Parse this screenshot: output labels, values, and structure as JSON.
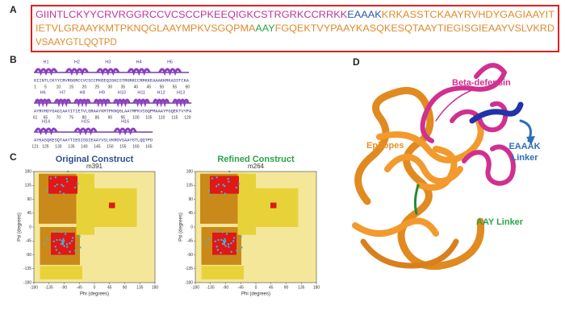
{
  "panels": {
    "a": {
      "label": "A",
      "lines": [
        [
          {
            "text": "GIINTLCKYYCRVRGGRCCVCSCCPKEEQIGKCSTRGRKCCRRKK",
            "color": "#c0339a"
          },
          {
            "text": "EAAAK",
            "color": "#2e56a8"
          },
          {
            "text": "KRKASSTCKAAYRVHDYGAGIAAYIT",
            "color": "#e08a2a"
          }
        ],
        [
          {
            "text": "IETVLGRAAYKMTPKNQGLAAYMPKVSGQPMA",
            "color": "#e08a2a"
          },
          {
            "text": "AAY",
            "color": "#2ca24a"
          },
          {
            "text": "FGQEKTVYPAAYKASQKESQTAAYTIEGISGIEAAYVSLVKRD",
            "color": "#e08a2a"
          }
        ],
        [
          {
            "text": "VSAAYGTLQQTPD",
            "color": "#e08a2a"
          }
        ]
      ]
    },
    "b": {
      "label": "B",
      "rows": [
        {
          "helices": [
            "H1",
            "H2",
            "H3",
            "H4",
            "H5"
          ],
          "sequence": "GIINTLCKYYCRVRGGRCCVCSCCPKEEQIGKCSTRGRKCCRRKKEAAAKKRKASSTCKA",
          "numbers": [
            1,
            5,
            10,
            15,
            20,
            25,
            30,
            35,
            40,
            45,
            50,
            55,
            60
          ]
        },
        {
          "helices": [
            "H6",
            "H7",
            "H8",
            "H9",
            "H10",
            "H11",
            "H12",
            "H13"
          ],
          "sequence": "AYRVHDYGAGIAAYITIETVLGRAAYKMTPKNQGLAAYMPKVSGQPMAAAYFGQEKTVYPA",
          "numbers": [
            61,
            65,
            70,
            75,
            80,
            85,
            90,
            95,
            100,
            105,
            110,
            115,
            120
          ]
        },
        {
          "helices": [
            "H14",
            "H15",
            "H16"
          ],
          "sequence": "AYKASQKESQTAAYTIEGISGIEAAYVSLVKRDVSAAYGTLQQTPD",
          "numbers": [
            121,
            125,
            130,
            135,
            140,
            145,
            150,
            155,
            160,
            165
          ]
        }
      ]
    },
    "c": {
      "label": "C",
      "x_label": "Phi (degrees)",
      "y_label": "Psi (degrees)",
      "ticks": [
        -180,
        -135,
        -90,
        -45,
        0,
        45,
        90,
        135,
        180
      ],
      "plots": [
        {
          "title": "Original Construct",
          "subtitle": "m391",
          "color": "#2e4f8f"
        },
        {
          "title": "Refined Construct",
          "subtitle": "m264",
          "color": "#2ca24a"
        }
      ]
    },
    "d": {
      "label": "D",
      "annotations": [
        {
          "text": "Beta-defensin",
          "color": "#d0308f"
        },
        {
          "text": "Epitopes",
          "color": "#e8922a"
        },
        {
          "text": "EAAAK Linker",
          "color": "#2e6fb8"
        },
        {
          "text": "AAY Linker",
          "color": "#2ca24a"
        }
      ]
    }
  }
}
